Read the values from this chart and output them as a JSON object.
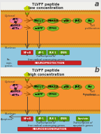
{
  "title_a": "TLVFF peptide\nlow concentration",
  "title_b": "TLVFF peptide\nhigh concentration",
  "label_a": "a",
  "label_b": "b",
  "bg_white": "#f5f5f0",
  "bg_cytoplasm": "#f59030",
  "bg_nucleus": "#90c8e0",
  "membrane_top1": "#d89020",
  "membrane_top2": "#e8c050",
  "pink_node": "#f080a0",
  "green_node": "#70c030",
  "dark_red_node": "#cc2020",
  "dark_green_node": "#559900",
  "arrow_pink": "#cc4466",
  "arrow_dark": "#663300",
  "text_dark": "#222222",
  "bottom_bar_color": "#cc2020",
  "bottom_bar_green": "#559900"
}
